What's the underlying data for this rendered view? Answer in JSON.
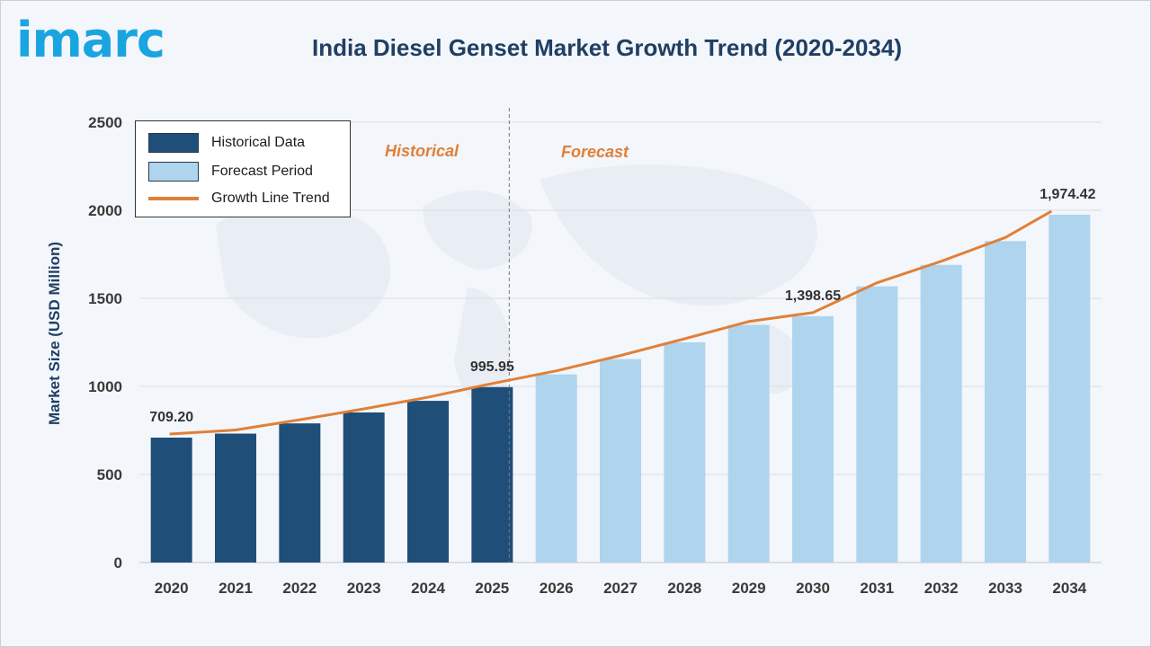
{
  "header": {
    "logo_text": "imarc",
    "title": "India Diesel Genset Market Growth Trend (2020-2034)"
  },
  "legend": {
    "items": [
      {
        "label": "Historical Data",
        "kind": "bar",
        "color": "#1f4e79"
      },
      {
        "label": "Forecast Period",
        "kind": "bar",
        "color": "#afd4ee"
      },
      {
        "label": "Growth Line Trend",
        "kind": "line",
        "color": "#e08038"
      }
    ]
  },
  "period_labels": {
    "historical": "Historical",
    "forecast": "Forecast"
  },
  "colors": {
    "historical_bar": "#1f4e79",
    "forecast_bar": "#afd4ee",
    "trend_line": "#e08038",
    "axis_text": "#3a3a3a",
    "title": "#1f3f63"
  },
  "chart_data": {
    "type": "bar",
    "title": "India Diesel Genset Market Growth Trend (2020-2034)",
    "xlabel": "",
    "ylabel": "Market Size (USD Million)",
    "ylim": [
      0,
      2500
    ],
    "yticks": [
      0,
      500,
      1000,
      1500,
      2000,
      2500
    ],
    "grid": true,
    "legend_position": "top-left",
    "categories": [
      "2020",
      "2021",
      "2022",
      "2023",
      "2024",
      "2025",
      "2026",
      "2027",
      "2028",
      "2029",
      "2030",
      "2031",
      "2032",
      "2033",
      "2034"
    ],
    "series": [
      {
        "name": "Historical Data",
        "values": [
          709.2,
          732,
          790,
          852,
          918,
          995.95,
          null,
          null,
          null,
          null,
          null,
          null,
          null,
          null,
          null
        ]
      },
      {
        "name": "Forecast Period",
        "values": [
          null,
          null,
          null,
          null,
          null,
          null,
          1068,
          1155,
          1250,
          1348,
          1398.65,
          1568,
          1690,
          1825,
          1974.42
        ]
      },
      {
        "name": "Growth Line Trend",
        "type": "line",
        "values": [
          709.2,
          732,
          790,
          852,
          918,
          995.95,
          1068,
          1155,
          1250,
          1348,
          1398.65,
          1568,
          1690,
          1825,
          1974.42
        ]
      }
    ],
    "data_labels": [
      {
        "category": "2020",
        "text": "709.20"
      },
      {
        "category": "2025",
        "text": "995.95"
      },
      {
        "category": "2030",
        "text": "1,398.65"
      },
      {
        "category": "2034",
        "text": "1,974.42"
      }
    ],
    "historical_end": "2025"
  }
}
